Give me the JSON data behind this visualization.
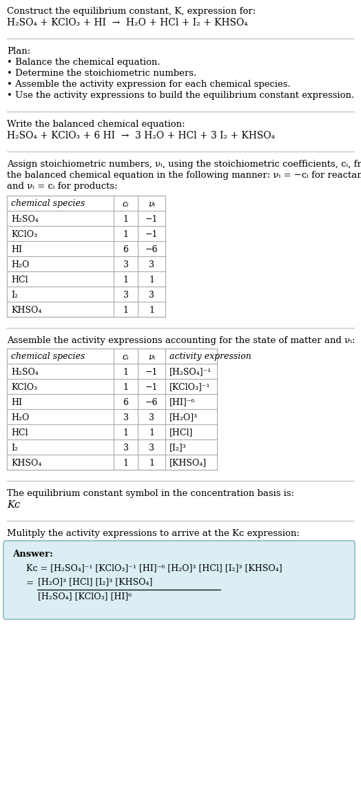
{
  "title_line1": "Construct the equilibrium constant, K, expression for:",
  "title_line2": "H₂SO₄ + KClO₃ + HI  →  H₂O + HCl + I₂ + KHSO₄",
  "plan_header": "Plan:",
  "plan_items": [
    "• Balance the chemical equation.",
    "• Determine the stoichiometric numbers.",
    "• Assemble the activity expression for each chemical species.",
    "• Use the activity expressions to build the equilibrium constant expression."
  ],
  "balanced_eq_header": "Write the balanced chemical equation:",
  "balanced_eq": "H₂SO₄ + KClO₃ + 6 HI  →  3 H₂O + HCl + 3 I₂ + KHSO₄",
  "stoich_para": "Assign stoichiometric numbers, νᵢ, using the stoichiometric coefficients, cᵢ, from the balanced chemical equation in the following manner: νᵢ = −cᵢ for reactants and νᵢ = cᵢ for products:",
  "table1_col_headers": [
    "chemical species",
    "cᵢ",
    "νᵢ"
  ],
  "table1_rows": [
    [
      "H₂SO₄",
      "1",
      "−1"
    ],
    [
      "KClO₃",
      "1",
      "−1"
    ],
    [
      "HI",
      "6",
      "−6"
    ],
    [
      "H₂O",
      "3",
      "3"
    ],
    [
      "HCl",
      "1",
      "1"
    ],
    [
      "I₂",
      "3",
      "3"
    ],
    [
      "KHSO₄",
      "1",
      "1"
    ]
  ],
  "activity_para": "Assemble the activity expressions accounting for the state of matter and νᵢ:",
  "table2_col_headers": [
    "chemical species",
    "cᵢ",
    "νᵢ",
    "activity expression"
  ],
  "table2_rows": [
    [
      "H₂SO₄",
      "1",
      "−1",
      "[H₂SO₄]⁻¹"
    ],
    [
      "KClO₃",
      "1",
      "−1",
      "[KClO₃]⁻¹"
    ],
    [
      "HI",
      "6",
      "−6",
      "[HI]⁻⁶"
    ],
    [
      "H₂O",
      "3",
      "3",
      "[H₂O]³"
    ],
    [
      "HCl",
      "1",
      "1",
      "[HCl]"
    ],
    [
      "I₂",
      "3",
      "3",
      "[I₂]³"
    ],
    [
      "KHSO₄",
      "1",
      "1",
      "[KHSO₄]"
    ]
  ],
  "kc_header": "The equilibrium constant symbol in the concentration basis is:",
  "kc_symbol": "Kᴄ",
  "multiply_header": "Mulitply the activity expressions to arrive at the Kᴄ expression:",
  "answer_label": "Answer:",
  "ans1": "Kᴄ = [H₂SO₄]⁻¹ [KClO₃]⁻¹ [HI]⁻⁶ [H₂O]³ [HCl] [I₂]³ [KHSO₄]",
  "ans2_eq": "=",
  "ans2_num": "[H₂O]³ [HCl] [I₂]³ [KHSO₄]",
  "ans2_den": "[H₂SO₄] [KClO₃] [HI]⁶",
  "bg": "#ffffff",
  "tc": "#000000",
  "border": "#bbbbbb",
  "tbl_border": "#aaaaaa",
  "ans_fill": "#daeef3",
  "ans_edge": "#8ab8c8"
}
